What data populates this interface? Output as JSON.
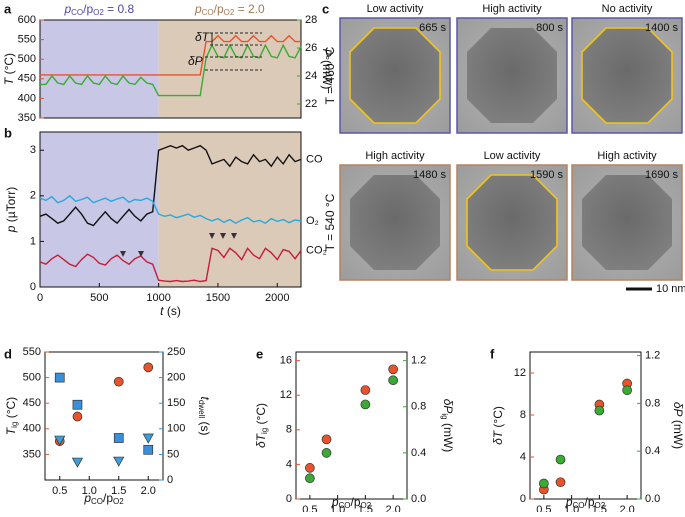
{
  "chart_data": [
    {
      "type": "line",
      "panel": "a",
      "x": [
        0,
        50,
        100,
        150,
        200,
        250,
        300,
        350,
        400,
        450,
        500,
        550,
        600,
        650,
        700,
        750,
        800,
        850,
        900,
        950,
        1000,
        1050,
        1100,
        1150,
        1200,
        1250,
        1300,
        1350,
        1400,
        1450,
        1500,
        1550,
        1600,
        1650,
        1700,
        1750,
        1800,
        1850,
        1900,
        1950,
        2000,
        2050,
        2100,
        2150,
        2200
      ],
      "xlim": [
        0,
        2200
      ],
      "ylim": [
        350,
        600
      ],
      "yticks": [
        350,
        400,
        450,
        500,
        550,
        600
      ],
      "y2lim": [
        21,
        28
      ],
      "y2ticks": [
        22,
        24,
        26,
        28
      ],
      "ylabel": [
        "T",
        "",
        " (°C)"
      ],
      "y2label": [
        "P",
        "",
        " (mW)"
      ],
      "y_color": "#e8532b",
      "y2_color": "#3aaa35",
      "regions": [
        {
          "x0": 0,
          "x1": 1000,
          "color": "#c9c7e6",
          "label": [
            "p",
            "CO",
            "/p",
            "O2",
            " = 0.8"
          ],
          "label_color": "#4d4aa8"
        },
        {
          "x0": 1000,
          "x1": 2200,
          "color": "#dccab8",
          "label": [
            "p",
            "CO",
            "/p",
            "O2",
            " = 2.0"
          ],
          "label_color": "#a47a52"
        }
      ],
      "annotations": [
        "δT",
        "δP"
      ],
      "series": [
        {
          "name": "T",
          "color": "#e8532b",
          "values": [
            460,
            460,
            460,
            460,
            460,
            460,
            460,
            460,
            460,
            460,
            460,
            460,
            460,
            460,
            460,
            460,
            460,
            460,
            460,
            460,
            460,
            460,
            460,
            460,
            460,
            460,
            460,
            460,
            545,
            545,
            560,
            545,
            545,
            560,
            545,
            545,
            560,
            545,
            545,
            560,
            545,
            545,
            560,
            545,
            545
          ]
        },
        {
          "name": "P",
          "color": "#3aaa35",
          "axis": "y2",
          "values": [
            23.4,
            23.4,
            24.0,
            23.5,
            23.4,
            24.0,
            23.5,
            23.4,
            24.0,
            23.5,
            23.4,
            24.0,
            23.5,
            23.4,
            24.0,
            23.5,
            23.4,
            23.9,
            23.5,
            23.4,
            22.6,
            22.6,
            22.6,
            22.6,
            22.6,
            22.6,
            22.6,
            22.6,
            25.3,
            26.2,
            25.4,
            25.3,
            26.2,
            25.4,
            25.3,
            26.2,
            25.4,
            25.3,
            26.2,
            25.4,
            25.3,
            26.2,
            25.4,
            25.3,
            26.1
          ]
        }
      ]
    },
    {
      "type": "line",
      "panel": "b",
      "x": [
        0,
        50,
        100,
        150,
        200,
        250,
        300,
        350,
        400,
        450,
        500,
        550,
        600,
        650,
        700,
        750,
        800,
        850,
        900,
        950,
        1000,
        1050,
        1100,
        1150,
        1200,
        1250,
        1300,
        1350,
        1400,
        1450,
        1500,
        1550,
        1600,
        1650,
        1700,
        1750,
        1800,
        1850,
        1900,
        1950,
        2000,
        2050,
        2100,
        2150,
        2200
      ],
      "xlim": [
        0,
        2200
      ],
      "xticks": [
        0,
        500,
        1000,
        1500,
        2000
      ],
      "ylim": [
        0,
        3.4
      ],
      "yticks": [
        0,
        1,
        2,
        3
      ],
      "xlabel": [
        "t",
        "",
        " (s)"
      ],
      "ylabel": [
        "p",
        "",
        " (µTorr)"
      ],
      "regions": [
        {
          "x0": 0,
          "x1": 1000,
          "color": "#c9c7e6"
        },
        {
          "x0": 1000,
          "x1": 2200,
          "color": "#dccab8"
        }
      ],
      "series": [
        {
          "name": "CO",
          "color": "#111111",
          "values": [
            1.55,
            1.6,
            1.5,
            1.4,
            1.45,
            1.6,
            1.75,
            1.6,
            1.4,
            1.35,
            1.5,
            1.65,
            1.5,
            1.4,
            1.55,
            1.7,
            1.55,
            1.45,
            1.6,
            1.65,
            3.0,
            3.05,
            3.1,
            3.05,
            3.1,
            3.0,
            3.05,
            3.1,
            3.0,
            2.7,
            2.75,
            2.8,
            2.65,
            2.85,
            2.75,
            2.7,
            2.9,
            2.75,
            2.8,
            2.65,
            2.85,
            2.7,
            2.9,
            2.75,
            2.8
          ]
        },
        {
          "name": "O₂",
          "color": "#29a8e0",
          "values": [
            1.95,
            1.9,
            1.98,
            1.85,
            1.9,
            2.0,
            1.88,
            1.92,
            1.97,
            1.85,
            1.9,
            1.95,
            1.88,
            1.93,
            1.97,
            1.86,
            1.92,
            1.9,
            1.95,
            1.88,
            1.6,
            1.55,
            1.58,
            1.52,
            1.56,
            1.6,
            1.53,
            1.57,
            1.5,
            1.45,
            1.5,
            1.42,
            1.48,
            1.4,
            1.47,
            1.52,
            1.43,
            1.46,
            1.4,
            1.5,
            1.44,
            1.48,
            1.41,
            1.47,
            1.45
          ]
        },
        {
          "name": "CO₂",
          "color": "#c41e3a",
          "values": [
            0.55,
            0.5,
            0.62,
            0.7,
            0.6,
            0.5,
            0.45,
            0.6,
            0.72,
            0.65,
            0.52,
            0.48,
            0.62,
            0.7,
            0.58,
            0.5,
            0.62,
            0.68,
            0.55,
            0.5,
            0.15,
            0.13,
            0.12,
            0.14,
            0.12,
            0.13,
            0.15,
            0.12,
            0.14,
            0.85,
            0.8,
            0.65,
            0.85,
            0.75,
            0.6,
            0.85,
            0.7,
            0.62,
            0.85,
            0.75,
            0.6,
            0.82,
            0.78,
            0.62,
            0.8
          ]
        }
      ]
    },
    {
      "type": "scatter",
      "panel": "d",
      "xlim": [
        0.25,
        2.25
      ],
      "xticks": [
        0.5,
        {
          "value": 1,
          "label": "1.0"
        },
        1.5,
        {
          "value": 2,
          "label": "2.0"
        }
      ],
      "ylim": [
        300,
        550
      ],
      "yticks": [
        350,
        400,
        450,
        500,
        550
      ],
      "y2lim": [
        0,
        250
      ],
      "y2ticks": [
        0,
        50,
        100,
        150,
        200,
        250
      ],
      "xlabel": [
        "p",
        "CO",
        "/p",
        "O2"
      ],
      "ylabel": [
        "T",
        "ig",
        " (°C)"
      ],
      "y2label": [
        "t",
        "dwell",
        " (s)"
      ],
      "y_color": "#e8532b",
      "y2_color": "#2f8fd8",
      "series": [
        {
          "marker": "circle",
          "color": "#e8532b",
          "x": [
            0.5,
            0.8,
            1.5,
            2.0
          ],
          "values": [
            376,
            424,
            492,
            520
          ]
        },
        {
          "marker": "square",
          "color": "#3a8fdc",
          "axis": "y2",
          "x": [
            0.5,
            0.8,
            1.5,
            2.0
          ],
          "values": [
            200,
            147,
            82,
            59
          ]
        },
        {
          "marker": "triangle",
          "color": "#3aa0dc",
          "axis": "y2",
          "x": [
            0.5,
            0.8,
            1.5,
            2.0
          ],
          "values": [
            78,
            35,
            37,
            82
          ]
        }
      ]
    },
    {
      "type": "scatter",
      "panel": "e",
      "xlim": [
        0.25,
        2.25
      ],
      "xticks": [
        0.5,
        {
          "value": 1,
          "label": "1.0"
        },
        1.5,
        {
          "value": 2,
          "label": "2.0"
        }
      ],
      "ylim": [
        0,
        17
      ],
      "yticks": [
        0,
        4,
        8,
        12,
        16
      ],
      "y2lim": [
        0,
        1.275
      ],
      "y2ticks": [
        {
          "value": 0,
          "label": "0.0"
        },
        0.4,
        0.8,
        1.2
      ],
      "xlabel": [
        "p",
        "CO",
        "/p",
        "O2"
      ],
      "ylabel": [
        "δT",
        "ig",
        " (°C)"
      ],
      "y2label": [
        "δP",
        "ig",
        " (mW)"
      ],
      "y_color": "#e8532b",
      "y2_color": "#3aaa35",
      "series": [
        {
          "marker": "circle",
          "color": "#e8532b",
          "x": [
            0.5,
            0.8,
            1.5,
            2.0
          ],
          "values": [
            3.6,
            6.9,
            12.6,
            15
          ]
        },
        {
          "marker": "circle",
          "color": "#3aaa35",
          "axis": "y2",
          "x": [
            0.5,
            0.8,
            1.5,
            2.0
          ],
          "values": [
            0.18,
            0.4,
            0.82,
            1.03
          ]
        }
      ]
    },
    {
      "type": "scatter",
      "panel": "f",
      "xlim": [
        0.25,
        2.25
      ],
      "xticks": [
        0.5,
        {
          "value": 1,
          "label": "1.0"
        },
        1.5,
        {
          "value": 2,
          "label": "2.0"
        }
      ],
      "ylim": [
        0,
        14
      ],
      "yticks": [
        0,
        4,
        8,
        12
      ],
      "y2lim": [
        0,
        1.23
      ],
      "y2ticks": [
        {
          "value": 0,
          "label": "0.0"
        },
        0.4,
        0.8,
        1.2
      ],
      "xlabel": [
        "p",
        "CO",
        "/p",
        "O2"
      ],
      "ylabel": [
        "δT",
        "",
        " (°C)"
      ],
      "y2label": [
        "δP",
        "",
        " (mW)"
      ],
      "y_color": "#e8532b",
      "y2_color": "#3aaa35",
      "series": [
        {
          "marker": "circle",
          "color": "#e8532b",
          "x": [
            0.5,
            0.8,
            1.5,
            2.0
          ],
          "values": [
            0.9,
            1.6,
            9,
            11
          ]
        },
        {
          "marker": "circle",
          "color": "#3aaa35",
          "axis": "y2",
          "x": [
            0.5,
            0.8,
            1.5,
            2.0
          ],
          "values": [
            0.13,
            0.33,
            0.74,
            0.91
          ]
        }
      ]
    }
  ],
  "panel_c": {
    "label": "c",
    "scale_bar": "10 nm",
    "rows": [
      {
        "temperature": "T = 460 °C",
        "frame_color": "#5a58a8",
        "images": [
          {
            "activity": "Low activity",
            "time": "665 s",
            "outlined": true
          },
          {
            "activity": "High activity",
            "time": "800 s",
            "outlined": false
          },
          {
            "activity": "No activity",
            "time": "1400 s",
            "outlined": true
          }
        ]
      },
      {
        "temperature": "T = 540 °C",
        "frame_color": "#b48462",
        "images": [
          {
            "activity": "High activity",
            "time": "1480 s",
            "outlined": false
          },
          {
            "activity": "Low activity",
            "time": "1590 s",
            "outlined": true
          },
          {
            "activity": "High activity",
            "time": "1690 s",
            "outlined": false
          }
        ]
      }
    ]
  }
}
